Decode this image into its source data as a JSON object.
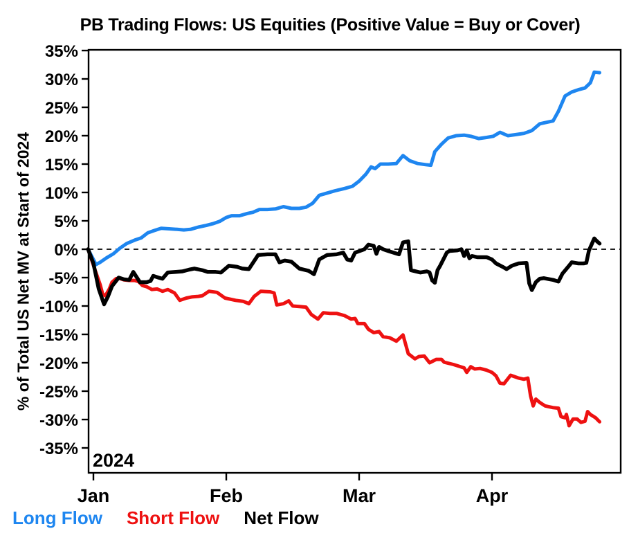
{
  "chart_data": {
    "type": "line",
    "title": "PB Trading Flows: US Equities (Positive Value = Buy or Cover)",
    "ylabel": "% of Total US Net MV at Start of 2024",
    "year_label": "2024",
    "grid": false,
    "legend_position": "bottom-left",
    "zero_line": {
      "style": "dashed",
      "color": "#000000"
    },
    "x_axis": {
      "unit": "months since 2024-01-01 (0=Jan 1, 1=Feb 1, 2=Mar 1, 3=Apr 1)",
      "range": [
        -0.04,
        3.97
      ],
      "ticks": [
        {
          "t": 0,
          "label": "Jan"
        },
        {
          "t": 1,
          "label": "Feb"
        },
        {
          "t": 2,
          "label": "Mar"
        },
        {
          "t": 3,
          "label": "Apr"
        }
      ]
    },
    "y_axis": {
      "unit": "percent",
      "range": [
        -35,
        35
      ],
      "ticks": [
        {
          "v": 35,
          "label": "35%"
        },
        {
          "v": 30,
          "label": "30%"
        },
        {
          "v": 25,
          "label": "25%"
        },
        {
          "v": 20,
          "label": "20%"
        },
        {
          "v": 15,
          "label": "15%"
        },
        {
          "v": 10,
          "label": "10%"
        },
        {
          "v": 5,
          "label": "5%"
        },
        {
          "v": 0,
          "label": "0%"
        },
        {
          "v": -5,
          "label": "-5%"
        },
        {
          "v": -10,
          "label": "-10%"
        },
        {
          "v": -15,
          "label": "-15%"
        },
        {
          "v": -20,
          "label": "-20%"
        },
        {
          "v": -25,
          "label": "-25%"
        },
        {
          "v": -30,
          "label": "-30%"
        },
        {
          "v": -35,
          "label": "-35%"
        }
      ]
    },
    "series": [
      {
        "name": "Long Flow",
        "color": "#1e86f0",
        "points": [
          [
            -0.04,
            0
          ],
          [
            0.02,
            -2.7
          ],
          [
            0.05,
            -2.3
          ],
          [
            0.1,
            -1.5
          ],
          [
            0.15,
            -0.8
          ],
          [
            0.2,
            0.2
          ],
          [
            0.25,
            1.0
          ],
          [
            0.31,
            1.6
          ],
          [
            0.36,
            2.0
          ],
          [
            0.41,
            2.9
          ],
          [
            0.46,
            3.3
          ],
          [
            0.51,
            3.7
          ],
          [
            0.57,
            3.6
          ],
          [
            0.63,
            3.5
          ],
          [
            0.68,
            3.4
          ],
          [
            0.73,
            3.5
          ],
          [
            0.79,
            3.9
          ],
          [
            0.85,
            4.2
          ],
          [
            0.9,
            4.5
          ],
          [
            0.95,
            4.9
          ],
          [
            1.0,
            5.6
          ],
          [
            1.04,
            5.9
          ],
          [
            1.1,
            5.9
          ],
          [
            1.16,
            6.3
          ],
          [
            1.2,
            6.5
          ],
          [
            1.25,
            7.0
          ],
          [
            1.31,
            7.0
          ],
          [
            1.37,
            7.1
          ],
          [
            1.43,
            7.5
          ],
          [
            1.49,
            7.2
          ],
          [
            1.55,
            7.2
          ],
          [
            1.6,
            7.4
          ],
          [
            1.65,
            8.1
          ],
          [
            1.7,
            9.5
          ],
          [
            1.76,
            9.9
          ],
          [
            1.82,
            10.3
          ],
          [
            1.89,
            10.7
          ],
          [
            1.95,
            11.1
          ],
          [
            2.0,
            12.0
          ],
          [
            2.05,
            13.2
          ],
          [
            2.09,
            14.5
          ],
          [
            2.12,
            14.2
          ],
          [
            2.16,
            15.0
          ],
          [
            2.22,
            15.0
          ],
          [
            2.28,
            15.1
          ],
          [
            2.33,
            16.5
          ],
          [
            2.38,
            15.6
          ],
          [
            2.44,
            15.1
          ],
          [
            2.5,
            14.9
          ],
          [
            2.54,
            14.8
          ],
          [
            2.57,
            17.2
          ],
          [
            2.62,
            18.5
          ],
          [
            2.67,
            19.6
          ],
          [
            2.73,
            20.0
          ],
          [
            2.79,
            20.1
          ],
          [
            2.84,
            19.9
          ],
          [
            2.9,
            19.5
          ],
          [
            2.96,
            19.7
          ],
          [
            3.01,
            19.9
          ],
          [
            3.06,
            20.6
          ],
          [
            3.12,
            20.0
          ],
          [
            3.18,
            20.2
          ],
          [
            3.24,
            20.4
          ],
          [
            3.3,
            20.9
          ],
          [
            3.36,
            22.1
          ],
          [
            3.42,
            22.4
          ],
          [
            3.46,
            22.6
          ],
          [
            3.5,
            24.3
          ],
          [
            3.55,
            27.0
          ],
          [
            3.6,
            27.7
          ],
          [
            3.65,
            28.1
          ],
          [
            3.7,
            28.4
          ],
          [
            3.74,
            29.3
          ],
          [
            3.77,
            31.2
          ],
          [
            3.81,
            31.1
          ]
        ]
      },
      {
        "name": "Short Flow",
        "color": "#ee1111",
        "points": [
          [
            -0.04,
            0
          ],
          [
            0.01,
            -3.5
          ],
          [
            0.05,
            -6.2
          ],
          [
            0.07,
            -7.9
          ],
          [
            0.09,
            -8.2
          ],
          [
            0.12,
            -7.0
          ],
          [
            0.14,
            -5.8
          ],
          [
            0.17,
            -5.2
          ],
          [
            0.19,
            -5.1
          ],
          [
            0.23,
            -5.4
          ],
          [
            0.27,
            -5.5
          ],
          [
            0.31,
            -5.5
          ],
          [
            0.34,
            -5.7
          ],
          [
            0.37,
            -6.4
          ],
          [
            0.4,
            -6.6
          ],
          [
            0.44,
            -7.1
          ],
          [
            0.48,
            -7.0
          ],
          [
            0.52,
            -7.4
          ],
          [
            0.56,
            -7.1
          ],
          [
            0.61,
            -7.7
          ],
          [
            0.65,
            -9.0
          ],
          [
            0.7,
            -8.6
          ],
          [
            0.74,
            -8.4
          ],
          [
            0.79,
            -8.3
          ],
          [
            0.82,
            -8.2
          ],
          [
            0.87,
            -7.4
          ],
          [
            0.93,
            -7.6
          ],
          [
            0.99,
            -8.6
          ],
          [
            1.07,
            -9.0
          ],
          [
            1.13,
            -9.2
          ],
          [
            1.17,
            -9.6
          ],
          [
            1.21,
            -8.3
          ],
          [
            1.26,
            -7.4
          ],
          [
            1.33,
            -7.5
          ],
          [
            1.36,
            -7.7
          ],
          [
            1.38,
            -9.8
          ],
          [
            1.43,
            -9.6
          ],
          [
            1.47,
            -9.1
          ],
          [
            1.5,
            -10.0
          ],
          [
            1.55,
            -10.1
          ],
          [
            1.6,
            -10.2
          ],
          [
            1.64,
            -11.5
          ],
          [
            1.69,
            -12.3
          ],
          [
            1.73,
            -11.2
          ],
          [
            1.78,
            -11.3
          ],
          [
            1.83,
            -11.3
          ],
          [
            1.89,
            -11.7
          ],
          [
            1.94,
            -12.3
          ],
          [
            1.97,
            -12.2
          ],
          [
            1.99,
            -13.1
          ],
          [
            2.04,
            -13.1
          ],
          [
            2.07,
            -14.1
          ],
          [
            2.11,
            -14.7
          ],
          [
            2.15,
            -14.5
          ],
          [
            2.18,
            -15.4
          ],
          [
            2.23,
            -15.6
          ],
          [
            2.28,
            -16.2
          ],
          [
            2.33,
            -15.1
          ],
          [
            2.37,
            -18.4
          ],
          [
            2.42,
            -19.3
          ],
          [
            2.45,
            -18.9
          ],
          [
            2.49,
            -18.8
          ],
          [
            2.53,
            -20.0
          ],
          [
            2.58,
            -19.4
          ],
          [
            2.62,
            -19.4
          ],
          [
            2.64,
            -19.9
          ],
          [
            2.71,
            -20.3
          ],
          [
            2.79,
            -20.9
          ],
          [
            2.81,
            -21.7
          ],
          [
            2.84,
            -20.7
          ],
          [
            2.87,
            -21.1
          ],
          [
            2.91,
            -21.0
          ],
          [
            2.96,
            -21.3
          ],
          [
            3.0,
            -21.7
          ],
          [
            3.03,
            -22.3
          ],
          [
            3.06,
            -23.6
          ],
          [
            3.09,
            -23.7
          ],
          [
            3.14,
            -22.2
          ],
          [
            3.2,
            -22.7
          ],
          [
            3.24,
            -22.9
          ],
          [
            3.27,
            -22.7
          ],
          [
            3.29,
            -25.8
          ],
          [
            3.31,
            -27.6
          ],
          [
            3.33,
            -26.4
          ],
          [
            3.36,
            -27.0
          ],
          [
            3.4,
            -27.6
          ],
          [
            3.46,
            -27.9
          ],
          [
            3.5,
            -28.0
          ],
          [
            3.52,
            -29.5
          ],
          [
            3.55,
            -29.7
          ],
          [
            3.56,
            -29.1
          ],
          [
            3.58,
            -31.1
          ],
          [
            3.61,
            -29.9
          ],
          [
            3.64,
            -29.9
          ],
          [
            3.67,
            -30.5
          ],
          [
            3.7,
            -30.3
          ],
          [
            3.72,
            -28.6
          ],
          [
            3.74,
            -29.1
          ],
          [
            3.78,
            -29.7
          ],
          [
            3.81,
            -30.4
          ]
        ]
      },
      {
        "name": "Net Flow",
        "color": "#000000",
        "points": [
          [
            -0.04,
            0
          ],
          [
            0.0,
            -2.5
          ],
          [
            0.04,
            -7.0
          ],
          [
            0.08,
            -9.7
          ],
          [
            0.11,
            -8.3
          ],
          [
            0.14,
            -6.5
          ],
          [
            0.19,
            -5.0
          ],
          [
            0.23,
            -5.3
          ],
          [
            0.27,
            -5.4
          ],
          [
            0.3,
            -4.0
          ],
          [
            0.35,
            -5.8
          ],
          [
            0.4,
            -5.8
          ],
          [
            0.43,
            -5.6
          ],
          [
            0.45,
            -4.7
          ],
          [
            0.49,
            -5.0
          ],
          [
            0.52,
            -5.2
          ],
          [
            0.56,
            -4.1
          ],
          [
            0.62,
            -4.0
          ],
          [
            0.67,
            -3.9
          ],
          [
            0.72,
            -3.6
          ],
          [
            0.76,
            -3.4
          ],
          [
            0.82,
            -3.7
          ],
          [
            0.86,
            -4.0
          ],
          [
            0.92,
            -4.0
          ],
          [
            0.96,
            -4.1
          ],
          [
            1.02,
            -2.9
          ],
          [
            1.08,
            -3.1
          ],
          [
            1.12,
            -3.4
          ],
          [
            1.17,
            -3.5
          ],
          [
            1.24,
            -1.0
          ],
          [
            1.31,
            -0.9
          ],
          [
            1.37,
            -0.9
          ],
          [
            1.4,
            -2.3
          ],
          [
            1.44,
            -2.0
          ],
          [
            1.49,
            -2.2
          ],
          [
            1.55,
            -3.4
          ],
          [
            1.62,
            -3.8
          ],
          [
            1.66,
            -4.4
          ],
          [
            1.7,
            -1.8
          ],
          [
            1.76,
            -1.0
          ],
          [
            1.83,
            -0.9
          ],
          [
            1.88,
            -0.6
          ],
          [
            1.91,
            -1.8
          ],
          [
            1.94,
            -2.0
          ],
          [
            1.97,
            -0.6
          ],
          [
            2.04,
            0.0
          ],
          [
            2.07,
            0.8
          ],
          [
            2.11,
            0.6
          ],
          [
            2.13,
            -0.8
          ],
          [
            2.15,
            0.4
          ],
          [
            2.18,
            0.0
          ],
          [
            2.23,
            -0.4
          ],
          [
            2.3,
            -0.9
          ],
          [
            2.33,
            1.2
          ],
          [
            2.37,
            1.4
          ],
          [
            2.39,
            -3.7
          ],
          [
            2.46,
            -4.1
          ],
          [
            2.51,
            -3.9
          ],
          [
            2.53,
            -4.1
          ],
          [
            2.55,
            -5.5
          ],
          [
            2.57,
            -5.9
          ],
          [
            2.59,
            -3.7
          ],
          [
            2.61,
            -2.9
          ],
          [
            2.66,
            -0.6
          ],
          [
            2.68,
            -0.3
          ],
          [
            2.74,
            -0.2
          ],
          [
            2.77,
            0.0
          ],
          [
            2.79,
            -1.2
          ],
          [
            2.81,
            -0.2
          ],
          [
            2.83,
            -1.6
          ],
          [
            2.85,
            -1.2
          ],
          [
            2.89,
            -1.4
          ],
          [
            2.96,
            -1.4
          ],
          [
            3.0,
            -1.8
          ],
          [
            3.03,
            -2.5
          ],
          [
            3.08,
            -3.1
          ],
          [
            3.11,
            -3.5
          ],
          [
            3.15,
            -2.9
          ],
          [
            3.2,
            -2.5
          ],
          [
            3.26,
            -2.4
          ],
          [
            3.28,
            -6.0
          ],
          [
            3.3,
            -7.2
          ],
          [
            3.33,
            -5.8
          ],
          [
            3.36,
            -5.2
          ],
          [
            3.39,
            -5.1
          ],
          [
            3.46,
            -5.4
          ],
          [
            3.5,
            -5.7
          ],
          [
            3.53,
            -4.3
          ],
          [
            3.58,
            -2.9
          ],
          [
            3.6,
            -2.3
          ],
          [
            3.65,
            -2.5
          ],
          [
            3.69,
            -2.5
          ],
          [
            3.71,
            -2.4
          ],
          [
            3.73,
            -0.2
          ],
          [
            3.77,
            1.9
          ],
          [
            3.79,
            1.4
          ],
          [
            3.81,
            1.0
          ]
        ]
      }
    ]
  }
}
